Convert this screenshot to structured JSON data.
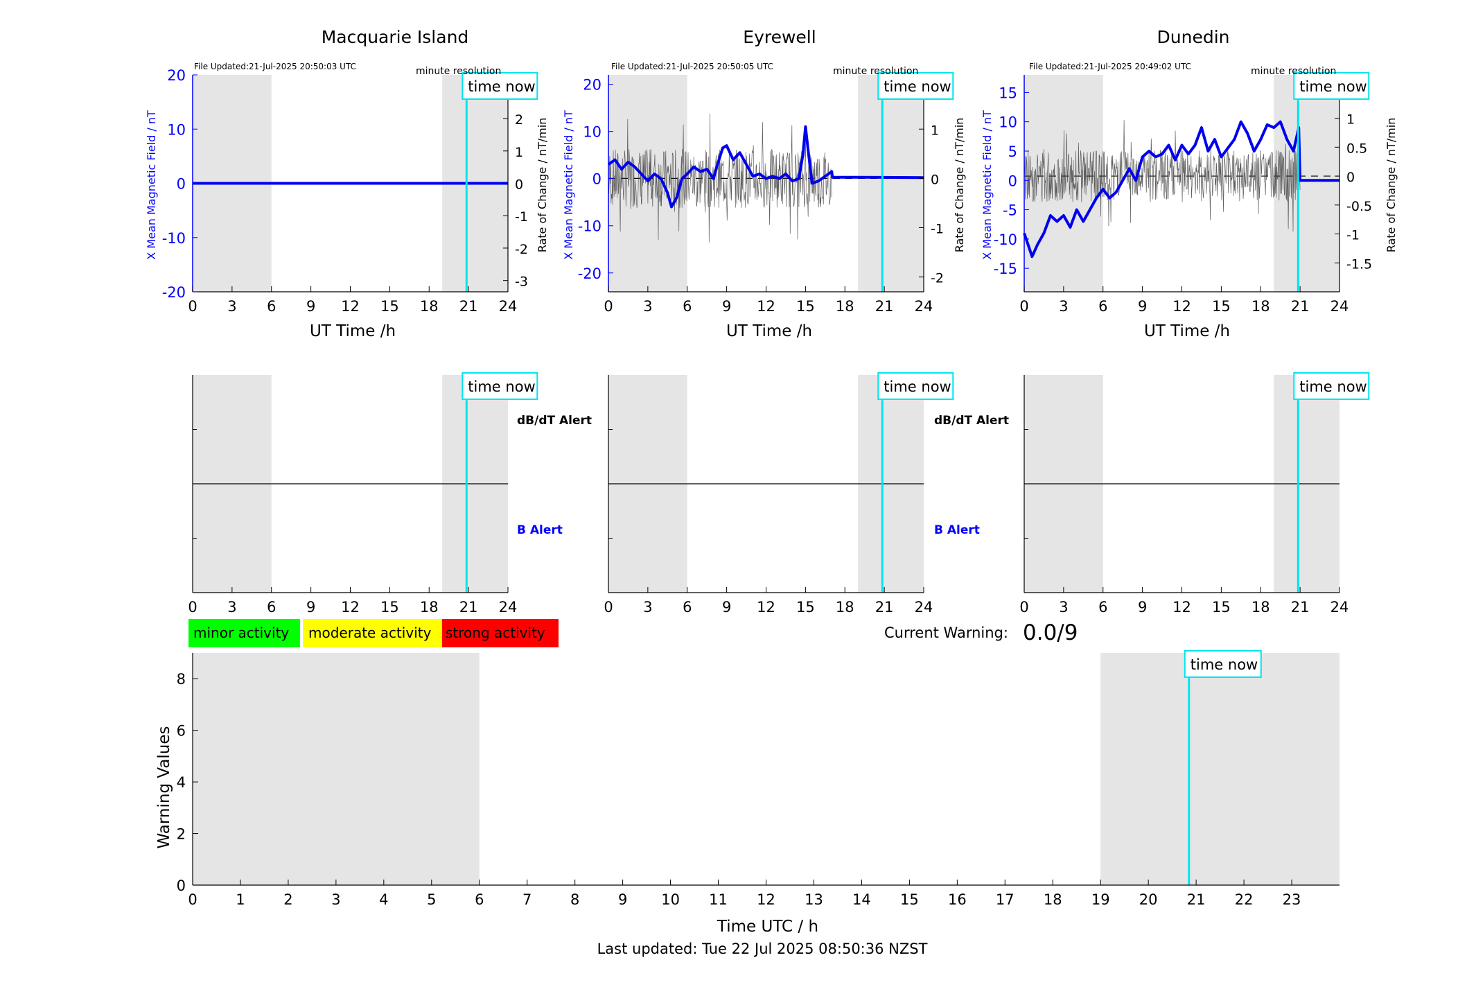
{
  "chart_data": [
    {
      "type": "line",
      "title": "Macquarie Island",
      "file_updated": "File Updated:21-Jul-2025 20:50:03 UTC",
      "resolution": "minute resolution",
      "time_now_label": "time now",
      "time_now": 20.85,
      "shaded_ranges": [
        [
          0,
          6
        ],
        [
          19,
          24
        ]
      ],
      "xlabel": "UT Time /h",
      "xlim": [
        0,
        24
      ],
      "xticks": [
        0,
        3,
        6,
        9,
        12,
        15,
        18,
        21,
        24
      ],
      "ylabel_left": "X Mean Magnetic Field / nT",
      "ylim_left": [
        -20,
        20
      ],
      "yticks_left": [
        -20,
        -10,
        0,
        10,
        20
      ],
      "ylabel_right": "Rate of Change / nT/min",
      "ylim_right": [
        -3.35,
        3.35
      ],
      "yticks_right": [
        -3,
        -2,
        -1,
        0,
        1,
        2,
        3
      ],
      "series": [
        {
          "x": [
            0,
            24
          ],
          "values": [
            0,
            0
          ]
        }
      ],
      "rate_noise": {
        "seed": 1,
        "end": 0,
        "amp": 0
      }
    },
    {
      "type": "line",
      "title": "Eyrewell",
      "file_updated": "File Updated:21-Jul-2025 20:50:05 UTC",
      "resolution": "minute resolution",
      "time_now_label": "time now",
      "time_now": 20.85,
      "shaded_ranges": [
        [
          0,
          6
        ],
        [
          19,
          24
        ]
      ],
      "xlabel": "UT Time /h",
      "xlim": [
        0,
        24
      ],
      "xticks": [
        0,
        3,
        6,
        9,
        12,
        15,
        18,
        21,
        24
      ],
      "ylabel_left": "X Mean Magnetic Field / nT",
      "ylim_left": [
        -24,
        22
      ],
      "yticks_left": [
        -20,
        -10,
        0,
        10,
        20
      ],
      "ylabel_right": "Rate of Change / nT/min",
      "ylim_right": [
        -2.3,
        2.1
      ],
      "yticks_right": [
        -2,
        -1,
        0,
        1,
        2
      ],
      "series": [
        {
          "x": [
            0,
            0.5,
            1,
            1.5,
            2,
            2.5,
            3,
            3.5,
            4,
            4.5,
            4.8,
            5.2,
            5.6,
            6,
            6.5,
            7,
            7.5,
            8,
            8.3,
            8.7,
            9,
            9.5,
            10,
            10.5,
            11,
            11.5,
            12,
            12.5,
            13,
            13.5,
            14,
            14.5,
            14.8,
            15,
            15.2,
            15.5,
            16,
            16.5,
            17,
            17.05,
            19,
            24
          ],
          "values": [
            3,
            4,
            2,
            3.5,
            2.5,
            1,
            -0.5,
            1,
            0,
            -3,
            -6,
            -4,
            0,
            1,
            2.5,
            1.5,
            2,
            0,
            3,
            6.5,
            7,
            4,
            5.5,
            3,
            0.5,
            1,
            0,
            0.5,
            0,
            1,
            -0.5,
            0,
            5,
            11,
            6,
            -1,
            -0.5,
            0.5,
            1.5,
            0.3,
            0.3,
            0.2
          ]
        }
      ],
      "rate_noise": {
        "seed": 7,
        "end": 17,
        "amp": 0.6
      }
    },
    {
      "type": "line",
      "title": "Dunedin",
      "file_updated": "File Updated:21-Jul-2025 20:49:02 UTC",
      "resolution": "minute resolution",
      "time_now_label": "time now",
      "time_now": 20.85,
      "shaded_ranges": [
        [
          0,
          6
        ],
        [
          19,
          24
        ]
      ],
      "xlabel": "UT Time /h",
      "xlim": [
        0,
        24
      ],
      "xticks": [
        0,
        3,
        6,
        9,
        12,
        15,
        18,
        21,
        24
      ],
      "ylabel_left": "X Mean Magnetic Field / nT",
      "ylim_left": [
        -19,
        18
      ],
      "yticks_left": [
        -15,
        -10,
        -5,
        0,
        5,
        10,
        15
      ],
      "ylabel_right": "Rate of Change / nT/min",
      "ylim_right": [
        -2.0,
        1.75
      ],
      "yticks_right": [
        -1.5,
        -1,
        -0.5,
        0,
        0.5,
        1,
        1.5
      ],
      "series": [
        {
          "x": [
            0,
            0.3,
            0.6,
            1,
            1.5,
            2,
            2.5,
            3,
            3.5,
            4,
            4.5,
            5,
            5.5,
            6,
            6.5,
            7,
            7.5,
            8,
            8.5,
            9,
            9.5,
            10,
            10.5,
            11,
            11.5,
            12,
            12.5,
            13,
            13.5,
            14,
            14.5,
            15,
            15.5,
            16,
            16.5,
            17,
            17.5,
            18,
            18.5,
            19,
            19.5,
            20,
            20.5,
            20.9,
            21,
            24
          ],
          "values": [
            -9,
            -11,
            -13,
            -11,
            -9,
            -6,
            -7,
            -6,
            -8,
            -5,
            -7,
            -5,
            -3,
            -1.5,
            -3,
            -2,
            0,
            2,
            0,
            4,
            5,
            4,
            4.5,
            6,
            3.5,
            6,
            4.5,
            6,
            9,
            5,
            7,
            4,
            5.5,
            7,
            10,
            8,
            5,
            7,
            9.5,
            9,
            10,
            7,
            5,
            9,
            0,
            0
          ]
        }
      ],
      "rate_noise": {
        "seed": 13,
        "end": 21,
        "amp": 0.45
      }
    },
    {
      "type": "line",
      "title": "",
      "time_now_label": "time now",
      "time_now": 20.85,
      "shaded_ranges": [
        [
          0,
          6
        ],
        [
          19,
          24
        ]
      ],
      "xlim": [
        0,
        24
      ],
      "xticks": [
        0,
        3,
        6,
        9,
        12,
        15,
        18,
        21,
        24
      ],
      "divider_value": 0.5,
      "alert_labels_station": "Macquarie Island",
      "db_alert_label": "dB/dT Alert",
      "b_alert_label": "B Alert"
    },
    {
      "type": "line",
      "title": "",
      "time_now_label": "time now",
      "time_now": 20.85,
      "shaded_ranges": [
        [
          0,
          6
        ],
        [
          19,
          24
        ]
      ],
      "xlim": [
        0,
        24
      ],
      "xticks": [
        0,
        3,
        6,
        9,
        12,
        15,
        18,
        21,
        24
      ],
      "divider_value": 0.5,
      "alert_labels_station": "Eyrewell",
      "db_alert_label": "dB/dT Alert",
      "b_alert_label": "B Alert"
    },
    {
      "type": "line",
      "title": "",
      "time_now_label": "time now",
      "time_now": 20.85,
      "shaded_ranges": [
        [
          0,
          6
        ],
        [
          19,
          24
        ]
      ],
      "xlim": [
        0,
        24
      ],
      "xticks": [
        0,
        3,
        6,
        9,
        12,
        15,
        18,
        21,
        24
      ],
      "divider_value": 0.5
    },
    {
      "type": "bar",
      "title": "",
      "xlabel": "Time UTC / h",
      "ylabel": "Warning Values",
      "xlim": [
        0,
        24
      ],
      "xticks": [
        0,
        1,
        2,
        3,
        4,
        5,
        6,
        7,
        8,
        9,
        10,
        11,
        12,
        13,
        14,
        15,
        16,
        17,
        18,
        19,
        20,
        21,
        22,
        23
      ],
      "ylim": [
        0,
        9
      ],
      "yticks": [
        0,
        2,
        4,
        6,
        8
      ],
      "shaded_ranges": [
        [
          0,
          6
        ],
        [
          19,
          24
        ]
      ],
      "time_now_label": "time now",
      "time_now": 20.85,
      "values": []
    }
  ],
  "legend": {
    "items": [
      {
        "label": "minor activity",
        "color": "#00ff00"
      },
      {
        "label": "moderate activity",
        "color": "#ffff00"
      },
      {
        "label": "strong activity",
        "color": "#ff0000"
      }
    ]
  },
  "warning": {
    "label": "Current Warning:",
    "value": "0.0/9"
  },
  "footer": {
    "last_updated": "Last updated: Tue 22 Jul 2025 08:50:36 NZST"
  },
  "colors": {
    "field_line": "#0000ee",
    "axis_blue": "#0000ff",
    "time_now": "#00e5ee",
    "shade": "#e5e5e5",
    "noise": "#444444"
  }
}
